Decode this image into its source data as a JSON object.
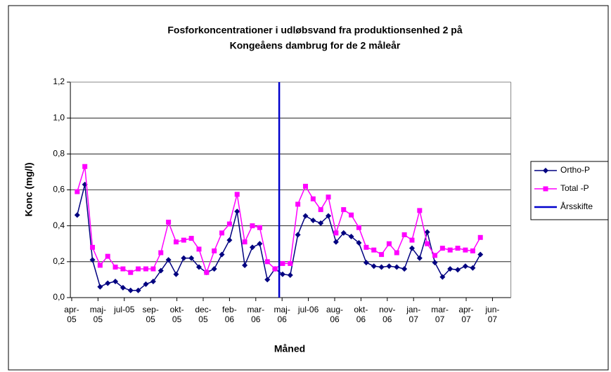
{
  "chart_data": {
    "type": "line",
    "title": [
      "Fosforkoncentrationer i udløbsvand fra produktionsenhed 2 på",
      "Kongeåens dambrug for de 2 måleår"
    ],
    "x_label": "Måned",
    "y_label": "Konc (mg/l)",
    "ylim": [
      0,
      1.2
    ],
    "yticks": [
      {
        "value": 0,
        "label": "0,0"
      },
      {
        "value": 0.2,
        "label": "0,2"
      },
      {
        "value": 0.4,
        "label": "0,4"
      },
      {
        "value": 0.6,
        "label": "0,6"
      },
      {
        "value": 0.8,
        "label": "0,8"
      },
      {
        "value": 1.0,
        "label": "1,0"
      },
      {
        "value": 1.2,
        "label": "1,2"
      }
    ],
    "xlim": [
      -0.05,
      16.7
    ],
    "xticks": [
      {
        "value": 0,
        "label": "apr-05"
      },
      {
        "value": 1,
        "label": "maj-05"
      },
      {
        "value": 2,
        "label": "jul-05"
      },
      {
        "value": 3,
        "label": "sep-05"
      },
      {
        "value": 4,
        "label": "okt-05"
      },
      {
        "value": 5,
        "label": "dec-05"
      },
      {
        "value": 6,
        "label": "feb-06"
      },
      {
        "value": 7,
        "label": "mar-06"
      },
      {
        "value": 8,
        "label": "maj-06"
      },
      {
        "value": 9,
        "label": "jul-06"
      },
      {
        "value": 10,
        "label": "aug-06"
      },
      {
        "value": 11,
        "label": "okt-06"
      },
      {
        "value": 12,
        "label": "nov-06"
      },
      {
        "value": 13,
        "label": "jan-07"
      },
      {
        "value": 14,
        "label": "mar-07"
      },
      {
        "value": 15,
        "label": "apr-07"
      },
      {
        "value": 16,
        "label": "jun-07"
      }
    ],
    "grid": true,
    "legend": "right",
    "series": [
      {
        "name": "Ortho-P",
        "color": "#000080",
        "marker": "diamond",
        "x": [
          0.21,
          0.5,
          0.79,
          1.08,
          1.37,
          1.66,
          1.95,
          2.24,
          2.53,
          2.82,
          3.1,
          3.39,
          3.68,
          3.97,
          4.26,
          4.55,
          4.84,
          5.13,
          5.42,
          5.71,
          6.0,
          6.29,
          6.58,
          6.87,
          7.15,
          7.44,
          7.73,
          8.02,
          8.31,
          8.6,
          8.89,
          9.18,
          9.47,
          9.76,
          10.05,
          10.34,
          10.63,
          10.92,
          11.2,
          11.49,
          11.78,
          12.07,
          12.36,
          12.65,
          12.94,
          13.23,
          13.52,
          13.81,
          14.1,
          14.39,
          14.68,
          14.97,
          15.25,
          15.54
        ],
        "values": [
          0.46,
          0.63,
          0.21,
          0.06,
          0.08,
          0.09,
          0.055,
          0.04,
          0.04,
          0.075,
          0.09,
          0.15,
          0.21,
          0.13,
          0.22,
          0.22,
          0.17,
          0.14,
          0.16,
          0.24,
          0.32,
          0.48,
          0.18,
          0.28,
          0.3,
          0.1,
          0.16,
          0.13,
          0.125,
          0.35,
          0.455,
          0.43,
          0.415,
          0.455,
          0.31,
          0.36,
          0.34,
          0.305,
          0.195,
          0.175,
          0.17,
          0.175,
          0.17,
          0.16,
          0.275,
          0.22,
          0.365,
          0.195,
          0.115,
          0.16,
          0.155,
          0.175,
          0.165,
          0.24
        ]
      },
      {
        "name": "Total -P",
        "color": "#ff00ff",
        "marker": "square",
        "x": [
          0.21,
          0.5,
          0.79,
          1.08,
          1.37,
          1.66,
          1.95,
          2.24,
          2.53,
          2.82,
          3.1,
          3.39,
          3.68,
          3.97,
          4.26,
          4.55,
          4.84,
          5.13,
          5.42,
          5.71,
          6.0,
          6.29,
          6.58,
          6.87,
          7.15,
          7.44,
          7.73,
          8.02,
          8.31,
          8.6,
          8.89,
          9.18,
          9.47,
          9.76,
          10.05,
          10.34,
          10.63,
          10.92,
          11.2,
          11.49,
          11.78,
          12.07,
          12.36,
          12.65,
          12.94,
          13.23,
          13.52,
          13.81,
          14.1,
          14.39,
          14.68,
          14.97,
          15.25,
          15.54
        ],
        "values": [
          0.59,
          0.73,
          0.28,
          0.18,
          0.23,
          0.17,
          0.16,
          0.14,
          0.16,
          0.16,
          0.16,
          0.25,
          0.42,
          0.31,
          0.32,
          0.33,
          0.27,
          0.14,
          0.26,
          0.36,
          0.41,
          0.575,
          0.31,
          0.4,
          0.39,
          0.2,
          0.16,
          0.19,
          0.19,
          0.52,
          0.62,
          0.55,
          0.49,
          0.56,
          0.36,
          0.49,
          0.46,
          0.39,
          0.28,
          0.265,
          0.24,
          0.3,
          0.25,
          0.35,
          0.32,
          0.485,
          0.3,
          0.235,
          0.275,
          0.265,
          0.275,
          0.265,
          0.26,
          0.335
        ]
      },
      {
        "name": "Årsskifte",
        "color": "#0000cc",
        "marker": "none",
        "x": [
          7.89,
          7.89
        ],
        "values": [
          0,
          1.2
        ]
      }
    ]
  }
}
